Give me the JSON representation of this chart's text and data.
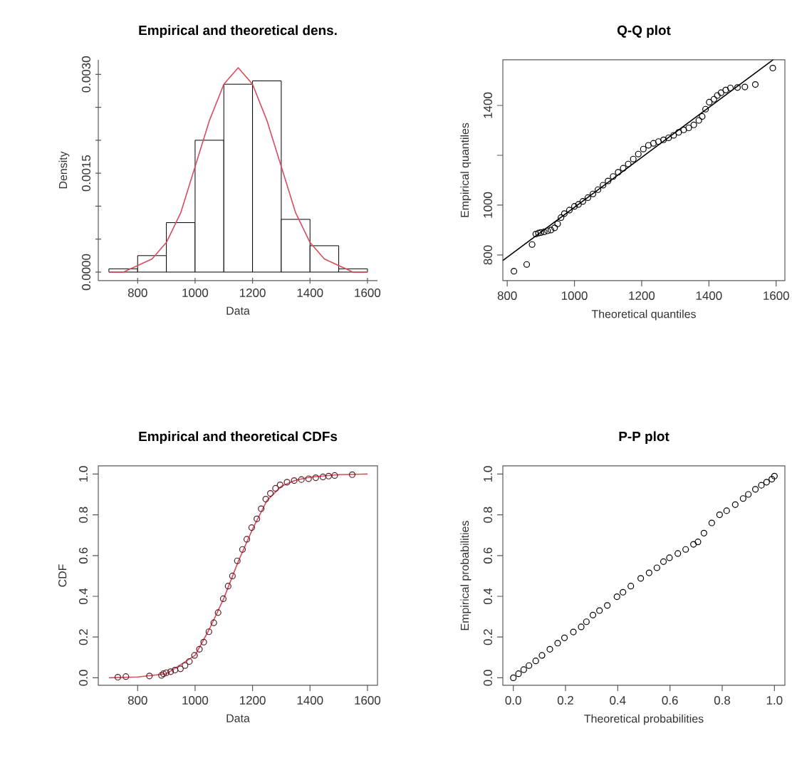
{
  "chart_data": [
    {
      "type": "histogram",
      "title": "Empirical and theoretical dens.",
      "xlabel": "Data",
      "ylabel": "Density",
      "bins": [
        700,
        800,
        900,
        1000,
        1100,
        1200,
        1300,
        1400,
        1500,
        1600
      ],
      "values": [
        5e-05,
        0.00025,
        0.00075,
        0.002,
        0.00285,
        0.0029,
        0.0008,
        0.0004,
        5e-05
      ],
      "series": [
        {
          "type": "line",
          "marker": "none",
          "color": "#d94c5c",
          "x": [
            700,
            750,
            800,
            850,
            900,
            950,
            1000,
            1050,
            1100,
            1150,
            1200,
            1250,
            1300,
            1350,
            1400,
            1450,
            1500,
            1550,
            1600
          ],
          "values": [
            0,
            0,
            0.0001,
            0.0002,
            0.00045,
            0.0009,
            0.0016,
            0.0023,
            0.00285,
            0.0031,
            0.00285,
            0.0023,
            0.0016,
            0.0009,
            0.00045,
            0.0002,
            0.0001,
            0,
            0
          ]
        }
      ],
      "xlim": [
        663,
        1635
      ],
      "ylim": [
        -0.00013,
        0.00322
      ],
      "xticks": [
        800,
        1000,
        1200,
        1400,
        1600
      ],
      "yticks": [
        {
          "value": 0,
          "label": "0.0000"
        },
        {
          "value": 0.0005,
          "label": null
        },
        {
          "value": 0.001,
          "label": null
        },
        {
          "value": 0.0015,
          "label": "0.0015"
        },
        {
          "value": 0.002,
          "label": null
        },
        {
          "value": 0.0025,
          "label": null
        },
        {
          "value": 0.003,
          "label": "0.0030"
        }
      ]
    },
    {
      "type": "scatter",
      "title": "Q-Q plot",
      "xlabel": "Theoretical quantiles",
      "ylabel": "Empirical quantiles",
      "series": [
        {
          "type": "scatter",
          "marker": "circle",
          "color": "#000000",
          "x": [
            820,
            858,
            874,
            885,
            893,
            900,
            910,
            920,
            930,
            941,
            950,
            960,
            970,
            985,
            1000,
            1012,
            1025,
            1040,
            1055,
            1070,
            1085,
            1100,
            1115,
            1130,
            1145,
            1160,
            1175,
            1190,
            1205,
            1220,
            1235,
            1250,
            1265,
            1280,
            1295,
            1310,
            1325,
            1340,
            1355,
            1370,
            1380,
            1390,
            1401,
            1415,
            1425,
            1436,
            1450,
            1464,
            1485,
            1507,
            1538,
            1590
          ],
          "values": [
            735,
            762,
            842,
            884,
            888,
            890,
            893,
            897,
            900,
            909,
            925,
            950,
            966,
            980,
            995,
            1003,
            1015,
            1030,
            1045,
            1062,
            1080,
            1097,
            1115,
            1132,
            1148,
            1165,
            1185,
            1205,
            1225,
            1240,
            1248,
            1255,
            1262,
            1270,
            1280,
            1292,
            1302,
            1310,
            1322,
            1340,
            1356,
            1385,
            1413,
            1425,
            1440,
            1451,
            1462,
            1470,
            1472,
            1474,
            1484,
            1550
          ]
        },
        {
          "type": "line",
          "marker": "none",
          "color": "#000000",
          "x": [
            787,
            1591
          ],
          "values": [
            778,
            1583
          ]
        }
      ],
      "xlim": [
        787,
        1626
      ],
      "ylim": [
        697,
        1583
      ],
      "xticks": [
        800,
        1000,
        1200,
        1400,
        1600
      ],
      "yticks": [
        800,
        1000,
        {
          "value": 1200,
          "label": null
        },
        1400
      ]
    },
    {
      "type": "scatter",
      "title": "Empirical and theoretical CDFs",
      "xlabel": "Data",
      "ylabel": "CDF",
      "series": [
        {
          "type": "scatter",
          "marker": "circle",
          "color": "#5a1a22",
          "x": [
            731,
            759,
            841,
            883,
            890,
            900,
            915,
            930,
            949,
            965,
            980,
            998,
            1015,
            1030,
            1048,
            1065,
            1080,
            1098,
            1115,
            1130,
            1147,
            1165,
            1180,
            1197,
            1215,
            1230,
            1246,
            1262,
            1280,
            1296,
            1320,
            1345,
            1370,
            1395,
            1420,
            1445,
            1465,
            1486,
            1547
          ],
          "values": [
            0.003,
            0.006,
            0.009,
            0.012,
            0.02,
            0.025,
            0.03,
            0.038,
            0.044,
            0.06,
            0.08,
            0.11,
            0.14,
            0.175,
            0.226,
            0.27,
            0.32,
            0.388,
            0.45,
            0.5,
            0.574,
            0.63,
            0.68,
            0.737,
            0.78,
            0.83,
            0.877,
            0.905,
            0.93,
            0.947,
            0.96,
            0.968,
            0.973,
            0.977,
            0.982,
            0.986,
            0.99,
            0.993,
            0.997
          ]
        },
        {
          "type": "line",
          "marker": "none",
          "color": "#d94c5c",
          "x": [
            700,
            800,
            900,
            1000,
            1050,
            1100,
            1150,
            1200,
            1250,
            1300,
            1350,
            1400,
            1500,
            1600
          ],
          "values": [
            0,
            0.004,
            0.02,
            0.11,
            0.24,
            0.39,
            0.57,
            0.73,
            0.87,
            0.94,
            0.97,
            0.985,
            0.997,
            1.0
          ]
        }
      ],
      "xlim": [
        663,
        1635
      ],
      "ylim": [
        -0.037,
        1.04
      ],
      "xticks": [
        800,
        1000,
        1200,
        1400,
        1600
      ],
      "yticks": [
        {
          "value": 0,
          "label": "0.0"
        },
        {
          "value": 0.2,
          "label": "0.2"
        },
        {
          "value": 0.4,
          "label": "0.4"
        },
        {
          "value": 0.6,
          "label": "0.6"
        },
        {
          "value": 0.8,
          "label": "0.8"
        },
        {
          "value": 1,
          "label": "1.0"
        }
      ]
    },
    {
      "type": "scatter",
      "title": "P-P plot",
      "xlabel": "Theoretical probabilities",
      "ylabel": "Empirical probabilities",
      "series": [
        {
          "type": "scatter",
          "marker": "circle",
          "color": "#000000",
          "x": [
            0,
            0.02,
            0.04,
            0.06,
            0.086,
            0.11,
            0.14,
            0.17,
            0.196,
            0.23,
            0.26,
            0.28,
            0.305,
            0.33,
            0.36,
            0.397,
            0.42,
            0.45,
            0.488,
            0.52,
            0.55,
            0.575,
            0.598,
            0.63,
            0.66,
            0.69,
            0.707,
            0.73,
            0.76,
            0.79,
            0.817,
            0.85,
            0.88,
            0.9,
            0.927,
            0.95,
            0.97,
            0.99,
            1.0
          ],
          "values": [
            0,
            0.02,
            0.04,
            0.06,
            0.083,
            0.11,
            0.14,
            0.17,
            0.196,
            0.225,
            0.25,
            0.275,
            0.308,
            0.33,
            0.355,
            0.398,
            0.42,
            0.45,
            0.488,
            0.515,
            0.54,
            0.57,
            0.589,
            0.61,
            0.63,
            0.655,
            0.667,
            0.71,
            0.76,
            0.8,
            0.82,
            0.85,
            0.88,
            0.9,
            0.925,
            0.945,
            0.96,
            0.975,
            0.99
          ]
        }
      ],
      "xlim": [
        -0.04,
        1.04
      ],
      "ylim": [
        -0.037,
        1.04
      ],
      "xticks": [
        {
          "value": 0,
          "label": "0.0"
        },
        {
          "value": 0.2,
          "label": "0.2"
        },
        {
          "value": 0.4,
          "label": "0.4"
        },
        {
          "value": 0.6,
          "label": "0.6"
        },
        {
          "value": 0.8,
          "label": "0.8"
        },
        {
          "value": 1,
          "label": "1.0"
        }
      ],
      "yticks": [
        {
          "value": 0,
          "label": "0.0"
        },
        {
          "value": 0.2,
          "label": "0.2"
        },
        {
          "value": 0.4,
          "label": "0.4"
        },
        {
          "value": 0.6,
          "label": "0.6"
        },
        {
          "value": 0.8,
          "label": "0.8"
        },
        {
          "value": 1,
          "label": "1.0"
        }
      ]
    }
  ]
}
